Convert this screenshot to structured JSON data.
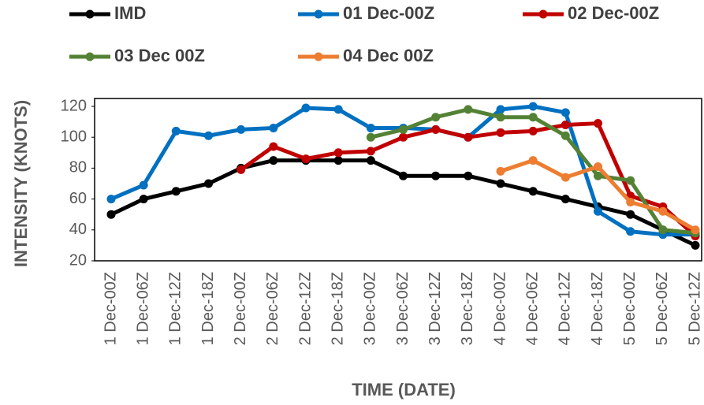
{
  "chart_data": {
    "type": "line",
    "x_label": "TIME (DATE)",
    "y_label": "INTENSITY (KNOTS)",
    "categories": [
      "1 Dec-00Z",
      "1 Dec-06Z",
      "1 Dec-12Z",
      "1 Dec-18Z",
      "2 Dec-00Z",
      "2 Dec-06Z",
      "2 Dec-12Z",
      "2 Dec-18Z",
      "3 Dec-00Z",
      "3 Dec-06Z",
      "3 Dec-12Z",
      "3 Dec-18Z",
      "4 Dec-00Z",
      "4 Dec-06Z",
      "4 Dec-12Z",
      "4 Dec-18Z",
      "5 Dec-00Z",
      "5 Dec-06Z",
      "5 Dec-12Z"
    ],
    "series": [
      {
        "name": "IMD",
        "color": "#000000",
        "values": [
          50,
          60,
          65,
          70,
          80,
          85,
          85,
          85,
          85,
          75,
          75,
          75,
          70,
          65,
          60,
          55,
          50,
          40,
          30
        ]
      },
      {
        "name": "01 Dec-00Z",
        "color": "#0070c0",
        "values": [
          60,
          69,
          104,
          101,
          105,
          106,
          119,
          118,
          106,
          106,
          105,
          100,
          118,
          120,
          116,
          52,
          39,
          37,
          37
        ]
      },
      {
        "name": "02 Dec-00Z",
        "color": "#c00000",
        "values": [
          null,
          null,
          null,
          null,
          79,
          94,
          86,
          90,
          91,
          100,
          105,
          100,
          103,
          104,
          108,
          109,
          62,
          55,
          36
        ]
      },
      {
        "name": "03 Dec 00Z",
        "color": "#548235",
        "values": [
          null,
          null,
          null,
          null,
          null,
          null,
          null,
          null,
          100,
          105,
          113,
          118,
          113,
          113,
          101,
          75,
          72,
          40,
          38
        ]
      },
      {
        "name": "04 Dec 00Z",
        "color": "#ed7d31",
        "values": [
          null,
          null,
          null,
          null,
          null,
          null,
          null,
          null,
          null,
          null,
          null,
          null,
          78,
          85,
          74,
          81,
          58,
          52,
          40
        ]
      }
    ],
    "ylim": [
      20,
      120
    ],
    "yticks": [
      20,
      40,
      60,
      80,
      100,
      120
    ],
    "grid": false
  }
}
